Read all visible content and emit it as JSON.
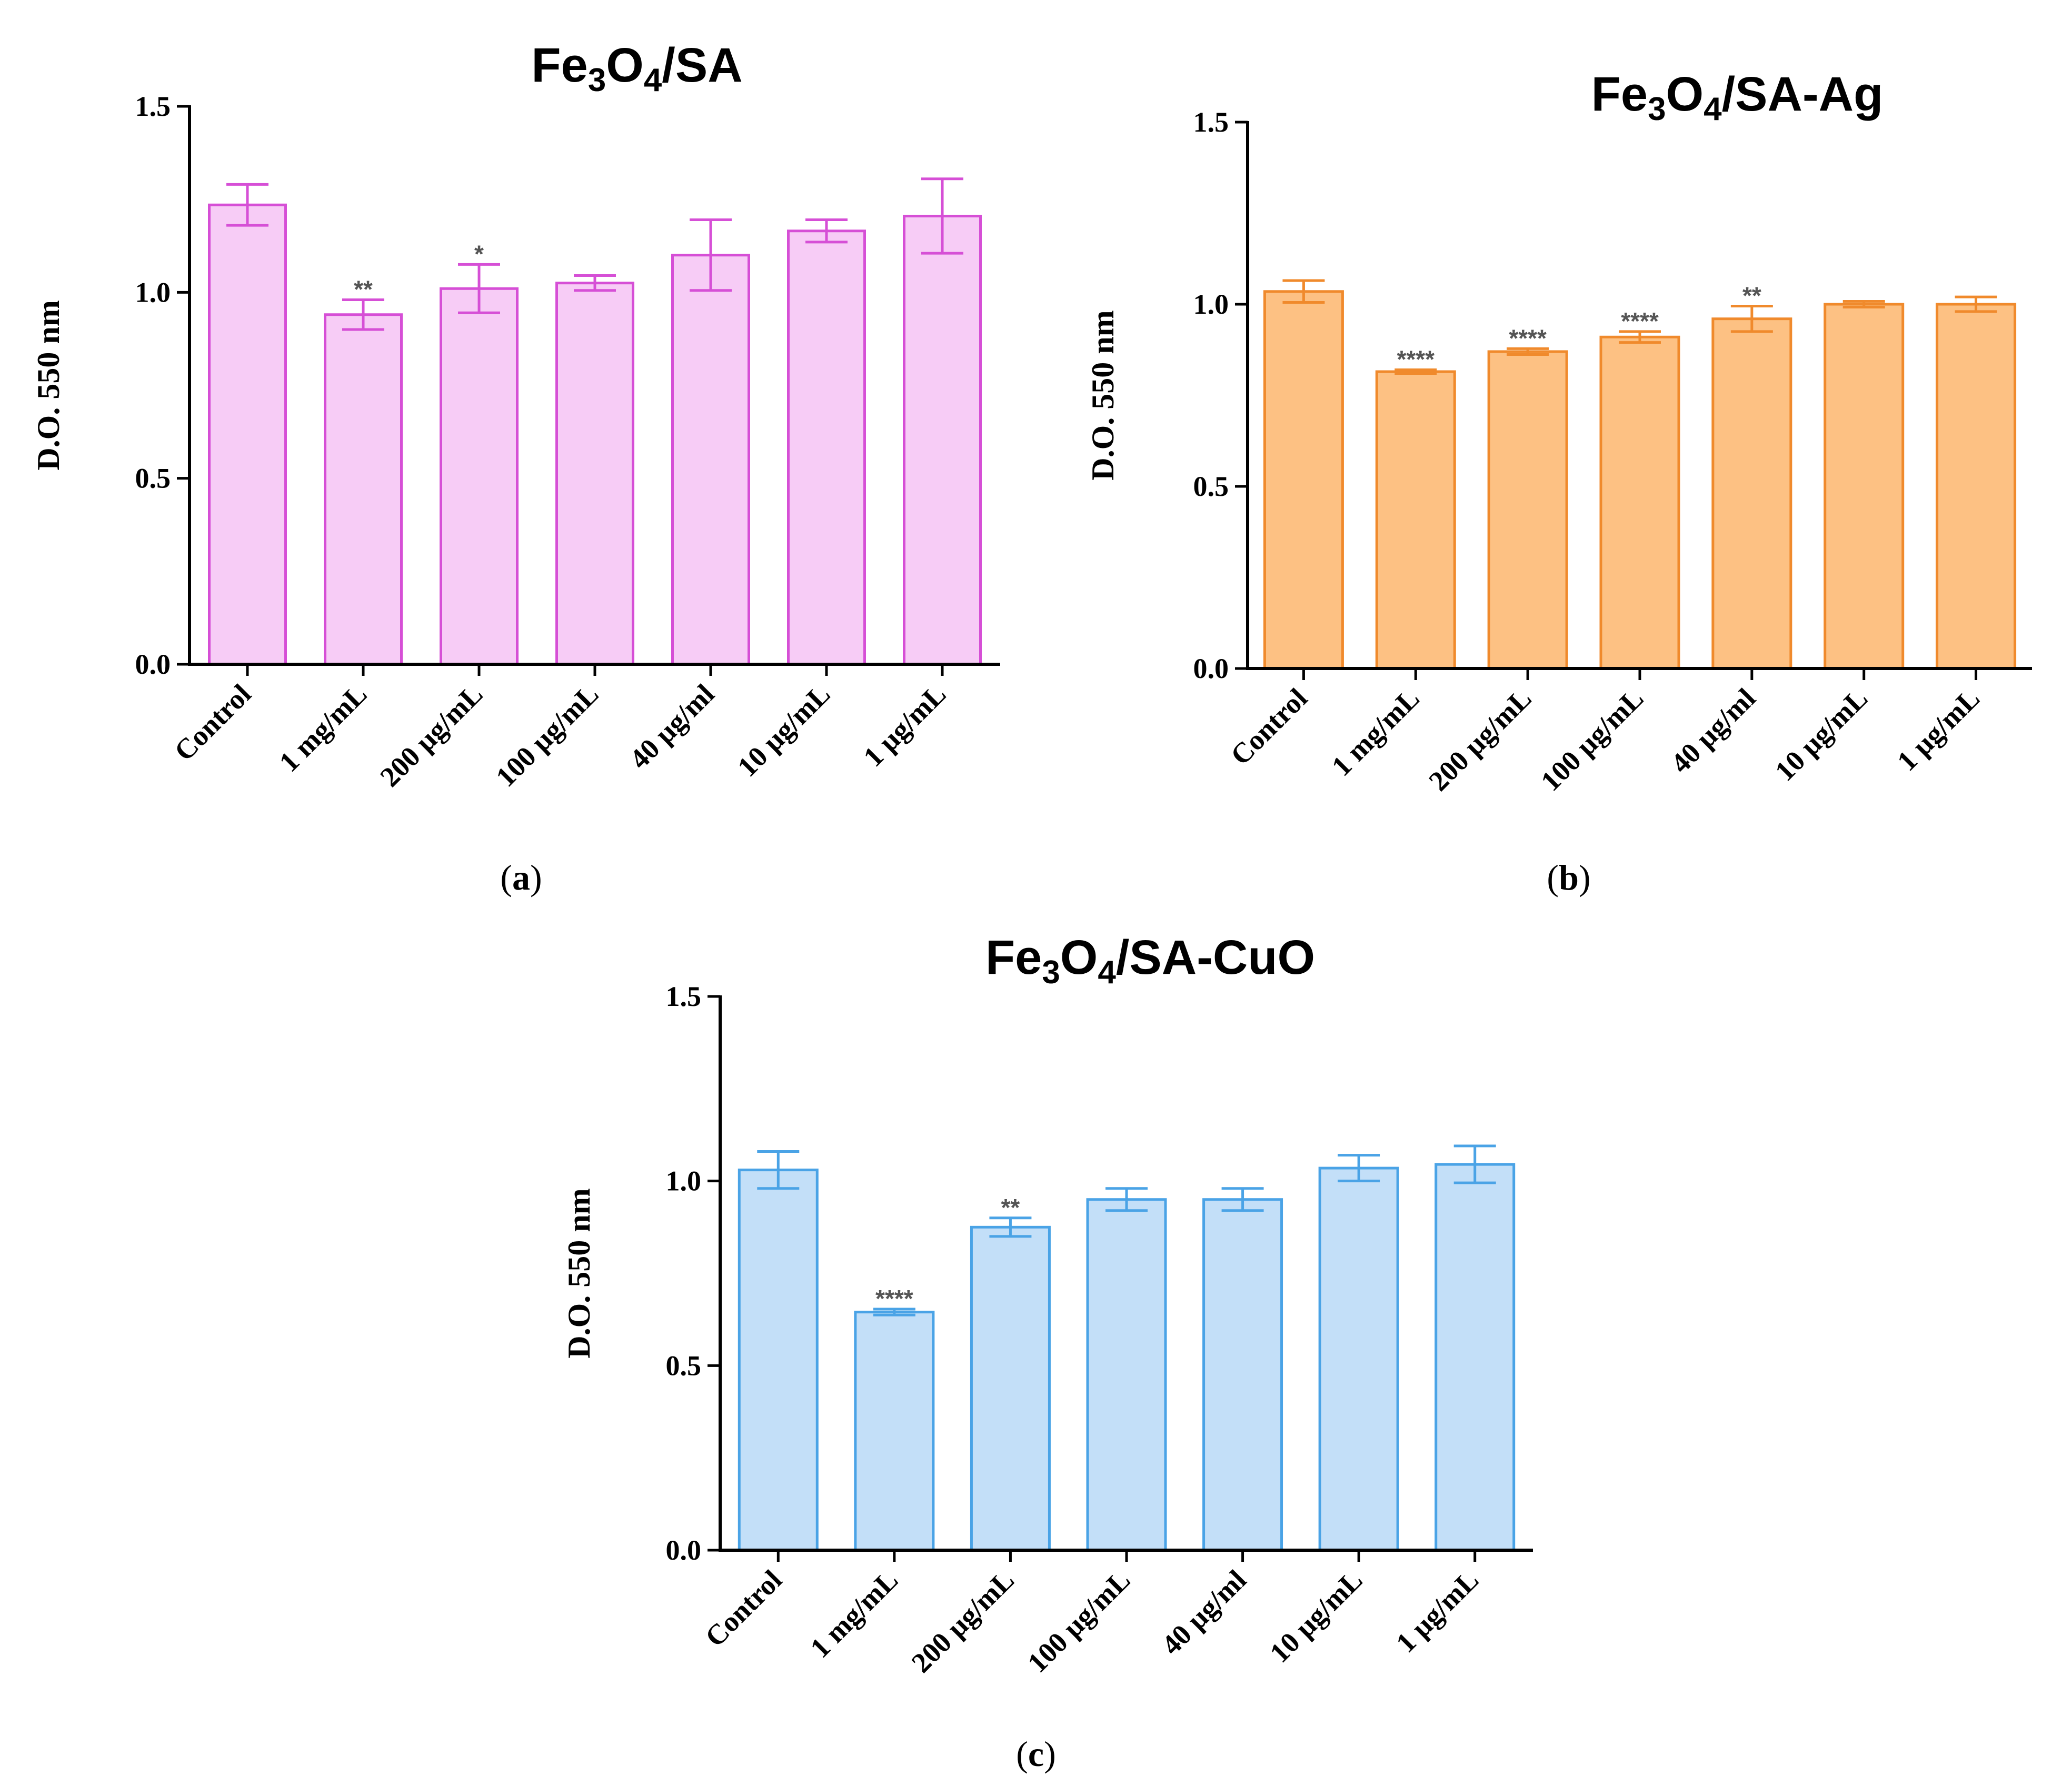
{
  "chart_data": [
    {
      "type": "bar",
      "panel": "a",
      "title": "Fe3O4/SA",
      "title_parts": [
        {
          "t": "Fe",
          "sub": false
        },
        {
          "t": "3",
          "sub": true
        },
        {
          "t": "O",
          "sub": false
        },
        {
          "t": "4",
          "sub": true
        },
        {
          "t": "/SA",
          "sub": false
        }
      ],
      "ylabel": "D.O. 550 nm",
      "xlabel": "",
      "ylim": [
        0,
        1.5
      ],
      "yticks": [
        "0.0",
        "0.5",
        "1.0",
        "1.5"
      ],
      "categories": [
        "Control",
        "1 mg/mL",
        "200 µg/mL",
        "100 µg/mL",
        "40 µg/ml",
        "10 µg/mL",
        "1 µg/mL"
      ],
      "values": [
        1.235,
        0.94,
        1.01,
        1.025,
        1.1,
        1.165,
        1.205
      ],
      "errors": [
        0.055,
        0.04,
        0.065,
        0.02,
        0.095,
        0.03,
        0.1
      ],
      "significance": [
        "",
        "**",
        "*",
        "",
        "",
        "",
        ""
      ],
      "bar_fill": "#f7ccf6",
      "bar_stroke": "#d64fd6"
    },
    {
      "type": "bar",
      "panel": "b",
      "title": "Fe3O4/SA-Ag",
      "title_parts": [
        {
          "t": "Fe",
          "sub": false
        },
        {
          "t": "3",
          "sub": true
        },
        {
          "t": "O",
          "sub": false
        },
        {
          "t": "4",
          "sub": true
        },
        {
          "t": "/SA-Ag",
          "sub": false
        }
      ],
      "ylabel": "D.O. 550 nm",
      "xlabel": "",
      "ylim": [
        0,
        1.5
      ],
      "yticks": [
        "0.0",
        "0.5",
        "1.0",
        "1.5"
      ],
      "categories": [
        "Control",
        "1 mg/mL",
        "200 µg/mL",
        "100 µg/mL",
        "40 µg/ml",
        "10 µg/mL",
        "1 µg/mL"
      ],
      "values": [
        1.035,
        0.815,
        0.87,
        0.91,
        0.96,
        1.0,
        1.0
      ],
      "errors": [
        0.03,
        0.005,
        0.008,
        0.015,
        0.035,
        0.008,
        0.02
      ],
      "significance": [
        "",
        "****",
        "****",
        "****",
        "**",
        "",
        ""
      ],
      "bar_fill": "#fdc183",
      "bar_stroke": "#f08a2c"
    },
    {
      "type": "bar",
      "panel": "c",
      "title": "Fe3O4/SA-CuO",
      "title_parts": [
        {
          "t": "Fe",
          "sub": false
        },
        {
          "t": "3",
          "sub": true
        },
        {
          "t": "O",
          "sub": false
        },
        {
          "t": "4",
          "sub": true
        },
        {
          "t": "/SA-CuO",
          "sub": false
        }
      ],
      "ylabel": "D.O. 550 nm",
      "xlabel": "",
      "ylim": [
        0,
        1.5
      ],
      "yticks": [
        "0.0",
        "0.5",
        "1.0",
        "1.5"
      ],
      "categories": [
        "Control",
        "1 mg/mL",
        "200 µg/mL",
        "100 µg/mL",
        "40 µg/ml",
        "10 µg/mL",
        "1 µg/mL"
      ],
      "values": [
        1.03,
        0.645,
        0.875,
        0.95,
        0.95,
        1.035,
        1.045
      ],
      "errors": [
        0.05,
        0.008,
        0.025,
        0.03,
        0.03,
        0.035,
        0.05
      ],
      "significance": [
        "",
        "****",
        "**",
        "",
        "",
        "",
        ""
      ],
      "bar_fill": "#c3dff8",
      "bar_stroke": "#4aa3e6"
    }
  ],
  "panel_labels": {
    "a": "a",
    "b": "b",
    "c": "c"
  }
}
